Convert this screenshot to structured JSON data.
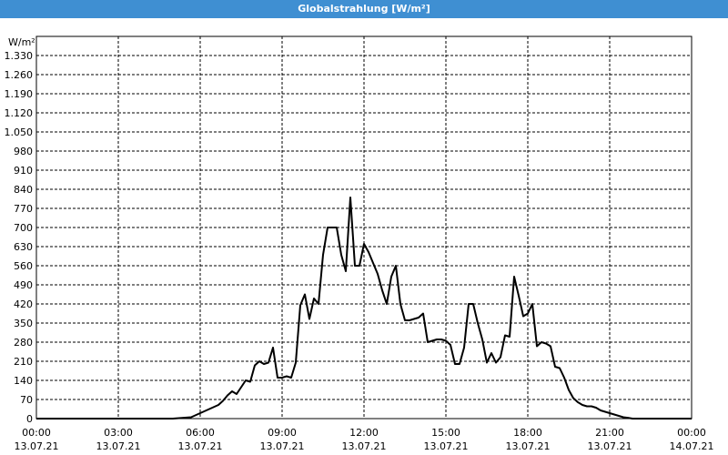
{
  "window": {
    "title": "Globalstrahlung [W/m²]"
  },
  "chart_data": {
    "type": "line",
    "title": "Globalstrahlung [W/m²]",
    "ylabel": "W/m²",
    "ylim": [
      0,
      1400
    ],
    "yticks": [
      0,
      70,
      140,
      210,
      280,
      350,
      420,
      490,
      560,
      630,
      700,
      770,
      840,
      910,
      980,
      1050,
      1120,
      1190,
      1260,
      1330
    ],
    "ytick_labels": [
      "0",
      "70",
      "140",
      "210",
      "280",
      "350",
      "420",
      "490",
      "560",
      "630",
      "700",
      "770",
      "840",
      "910",
      "980",
      "1.050",
      "1.120",
      "1.190",
      "1.260",
      "1.330"
    ],
    "xlim": [
      "13.07.21 00:00",
      "14.07.21 00:00"
    ],
    "xticks": [
      {
        "time": "00:00",
        "date": "13.07.21"
      },
      {
        "time": "03:00",
        "date": "13.07.21"
      },
      {
        "time": "06:00",
        "date": "13.07.21"
      },
      {
        "time": "09:00",
        "date": "13.07.21"
      },
      {
        "time": "12:00",
        "date": "13.07.21"
      },
      {
        "time": "15:00",
        "date": "13.07.21"
      },
      {
        "time": "18:00",
        "date": "13.07.21"
      },
      {
        "time": "21:00",
        "date": "13.07.21"
      },
      {
        "time": "00:00",
        "date": "14.07.21"
      }
    ],
    "grid": true,
    "line_color": "#000000",
    "series": [
      {
        "x": [
          "00:00",
          "01:00",
          "02:00",
          "03:00",
          "04:00",
          "05:00",
          "05:40",
          "06:00",
          "06:20",
          "06:40",
          "06:50",
          "07:00",
          "07:10",
          "07:20",
          "07:30",
          "07:40",
          "07:50",
          "08:00",
          "08:10",
          "08:20",
          "08:30",
          "08:40",
          "08:50",
          "09:00",
          "09:10",
          "09:20",
          "09:30",
          "09:40",
          "09:50",
          "10:00",
          "10:10",
          "10:20",
          "10:30",
          "10:40",
          "10:50",
          "11:00",
          "11:10",
          "11:20",
          "11:30",
          "11:40",
          "11:50",
          "12:00",
          "12:10",
          "12:20",
          "12:30",
          "12:40",
          "12:50",
          "13:00",
          "13:10",
          "13:20",
          "13:30",
          "13:40",
          "13:50",
          "14:00",
          "14:10",
          "14:20",
          "14:30",
          "14:40",
          "14:50",
          "15:00",
          "15:10",
          "15:20",
          "15:30",
          "15:40",
          "15:50",
          "16:00",
          "16:10",
          "16:20",
          "16:30",
          "16:40",
          "16:50",
          "17:00",
          "17:10",
          "17:20",
          "17:30",
          "17:40",
          "17:50",
          "18:00",
          "18:10",
          "18:20",
          "18:30",
          "18:40",
          "18:50",
          "19:00",
          "19:10",
          "19:20",
          "19:30",
          "19:40",
          "19:50",
          "20:00",
          "20:10",
          "20:20",
          "20:30",
          "20:40",
          "20:50",
          "21:00",
          "21:10",
          "21:20",
          "21:30",
          "21:40",
          "21:50",
          "22:00",
          "23:00",
          "24:00"
        ],
        "values": [
          0,
          0,
          0,
          0,
          0,
          0,
          5,
          20,
          35,
          50,
          65,
          85,
          100,
          90,
          115,
          140,
          135,
          195,
          210,
          200,
          205,
          260,
          150,
          150,
          155,
          150,
          205,
          415,
          455,
          365,
          440,
          420,
          600,
          700,
          700,
          700,
          600,
          540,
          810,
          560,
          560,
          640,
          610,
          570,
          530,
          470,
          420,
          520,
          560,
          420,
          360,
          360,
          365,
          370,
          385,
          280,
          285,
          290,
          290,
          285,
          270,
          200,
          200,
          260,
          420,
          420,
          350,
          290,
          205,
          240,
          205,
          225,
          305,
          300,
          520,
          450,
          375,
          385,
          420,
          265,
          280,
          275,
          265,
          190,
          185,
          150,
          105,
          75,
          60,
          50,
          45,
          45,
          40,
          30,
          25,
          20,
          15,
          10,
          5,
          3,
          0,
          0,
          0,
          0
        ]
      }
    ]
  }
}
